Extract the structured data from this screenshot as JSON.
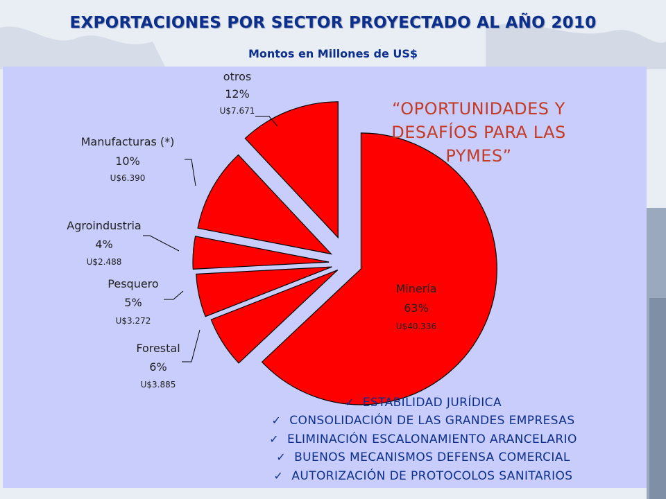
{
  "header": {
    "title": "EXPORTACIONES POR SECTOR PROYECTADO AL AÑO 2010",
    "subtitle": "Montos en Millones de US$"
  },
  "chart_data": {
    "type": "pie",
    "exploded": true,
    "slices": [
      {
        "name": "Minería",
        "percent": "63%",
        "amount": "U$40.336",
        "value": 40336,
        "color": "#ff0000"
      },
      {
        "name": "Forestal",
        "percent": "6%",
        "amount": "U$3.885",
        "value": 3885,
        "color": "#ff0000"
      },
      {
        "name": "Pesquero",
        "percent": "5%",
        "amount": "U$3.272",
        "value": 3272,
        "color": "#ff0000"
      },
      {
        "name": "Agroindustria",
        "percent": "4%",
        "amount": "U$2.488",
        "value": 2488,
        "color": "#ff0000"
      },
      {
        "name": "Manufacturas (*)",
        "percent": "10%",
        "amount": "U$6.390",
        "value": 6390,
        "color": "#ff0000"
      },
      {
        "name": "otros",
        "percent": "12%",
        "amount": "U$7.671",
        "value": 7671,
        "color": "#ff0000"
      }
    ]
  },
  "callout": {
    "lines": [
      "“OPORTUNIDADES Y",
      "DESAFÍOS PARA LAS",
      "PYMES”"
    ]
  },
  "bullets": [
    "ESTABILIDAD JURÍDICA",
    "CONSOLIDACIÓN DE LAS GRANDES EMPRESAS",
    "ELIMINACIÓN ESCALONAMIENTO ARANCELARIO",
    "BUENOS MECANISMOS DEFENSA COMERCIAL",
    "AUTORIZACIÓN DE PROTOCOLOS SANITARIOS"
  ],
  "colors": {
    "title": "#0d2f8c",
    "panel": "#c8cdfb",
    "slice": "#ff0000",
    "callout": "#c43b25"
  }
}
